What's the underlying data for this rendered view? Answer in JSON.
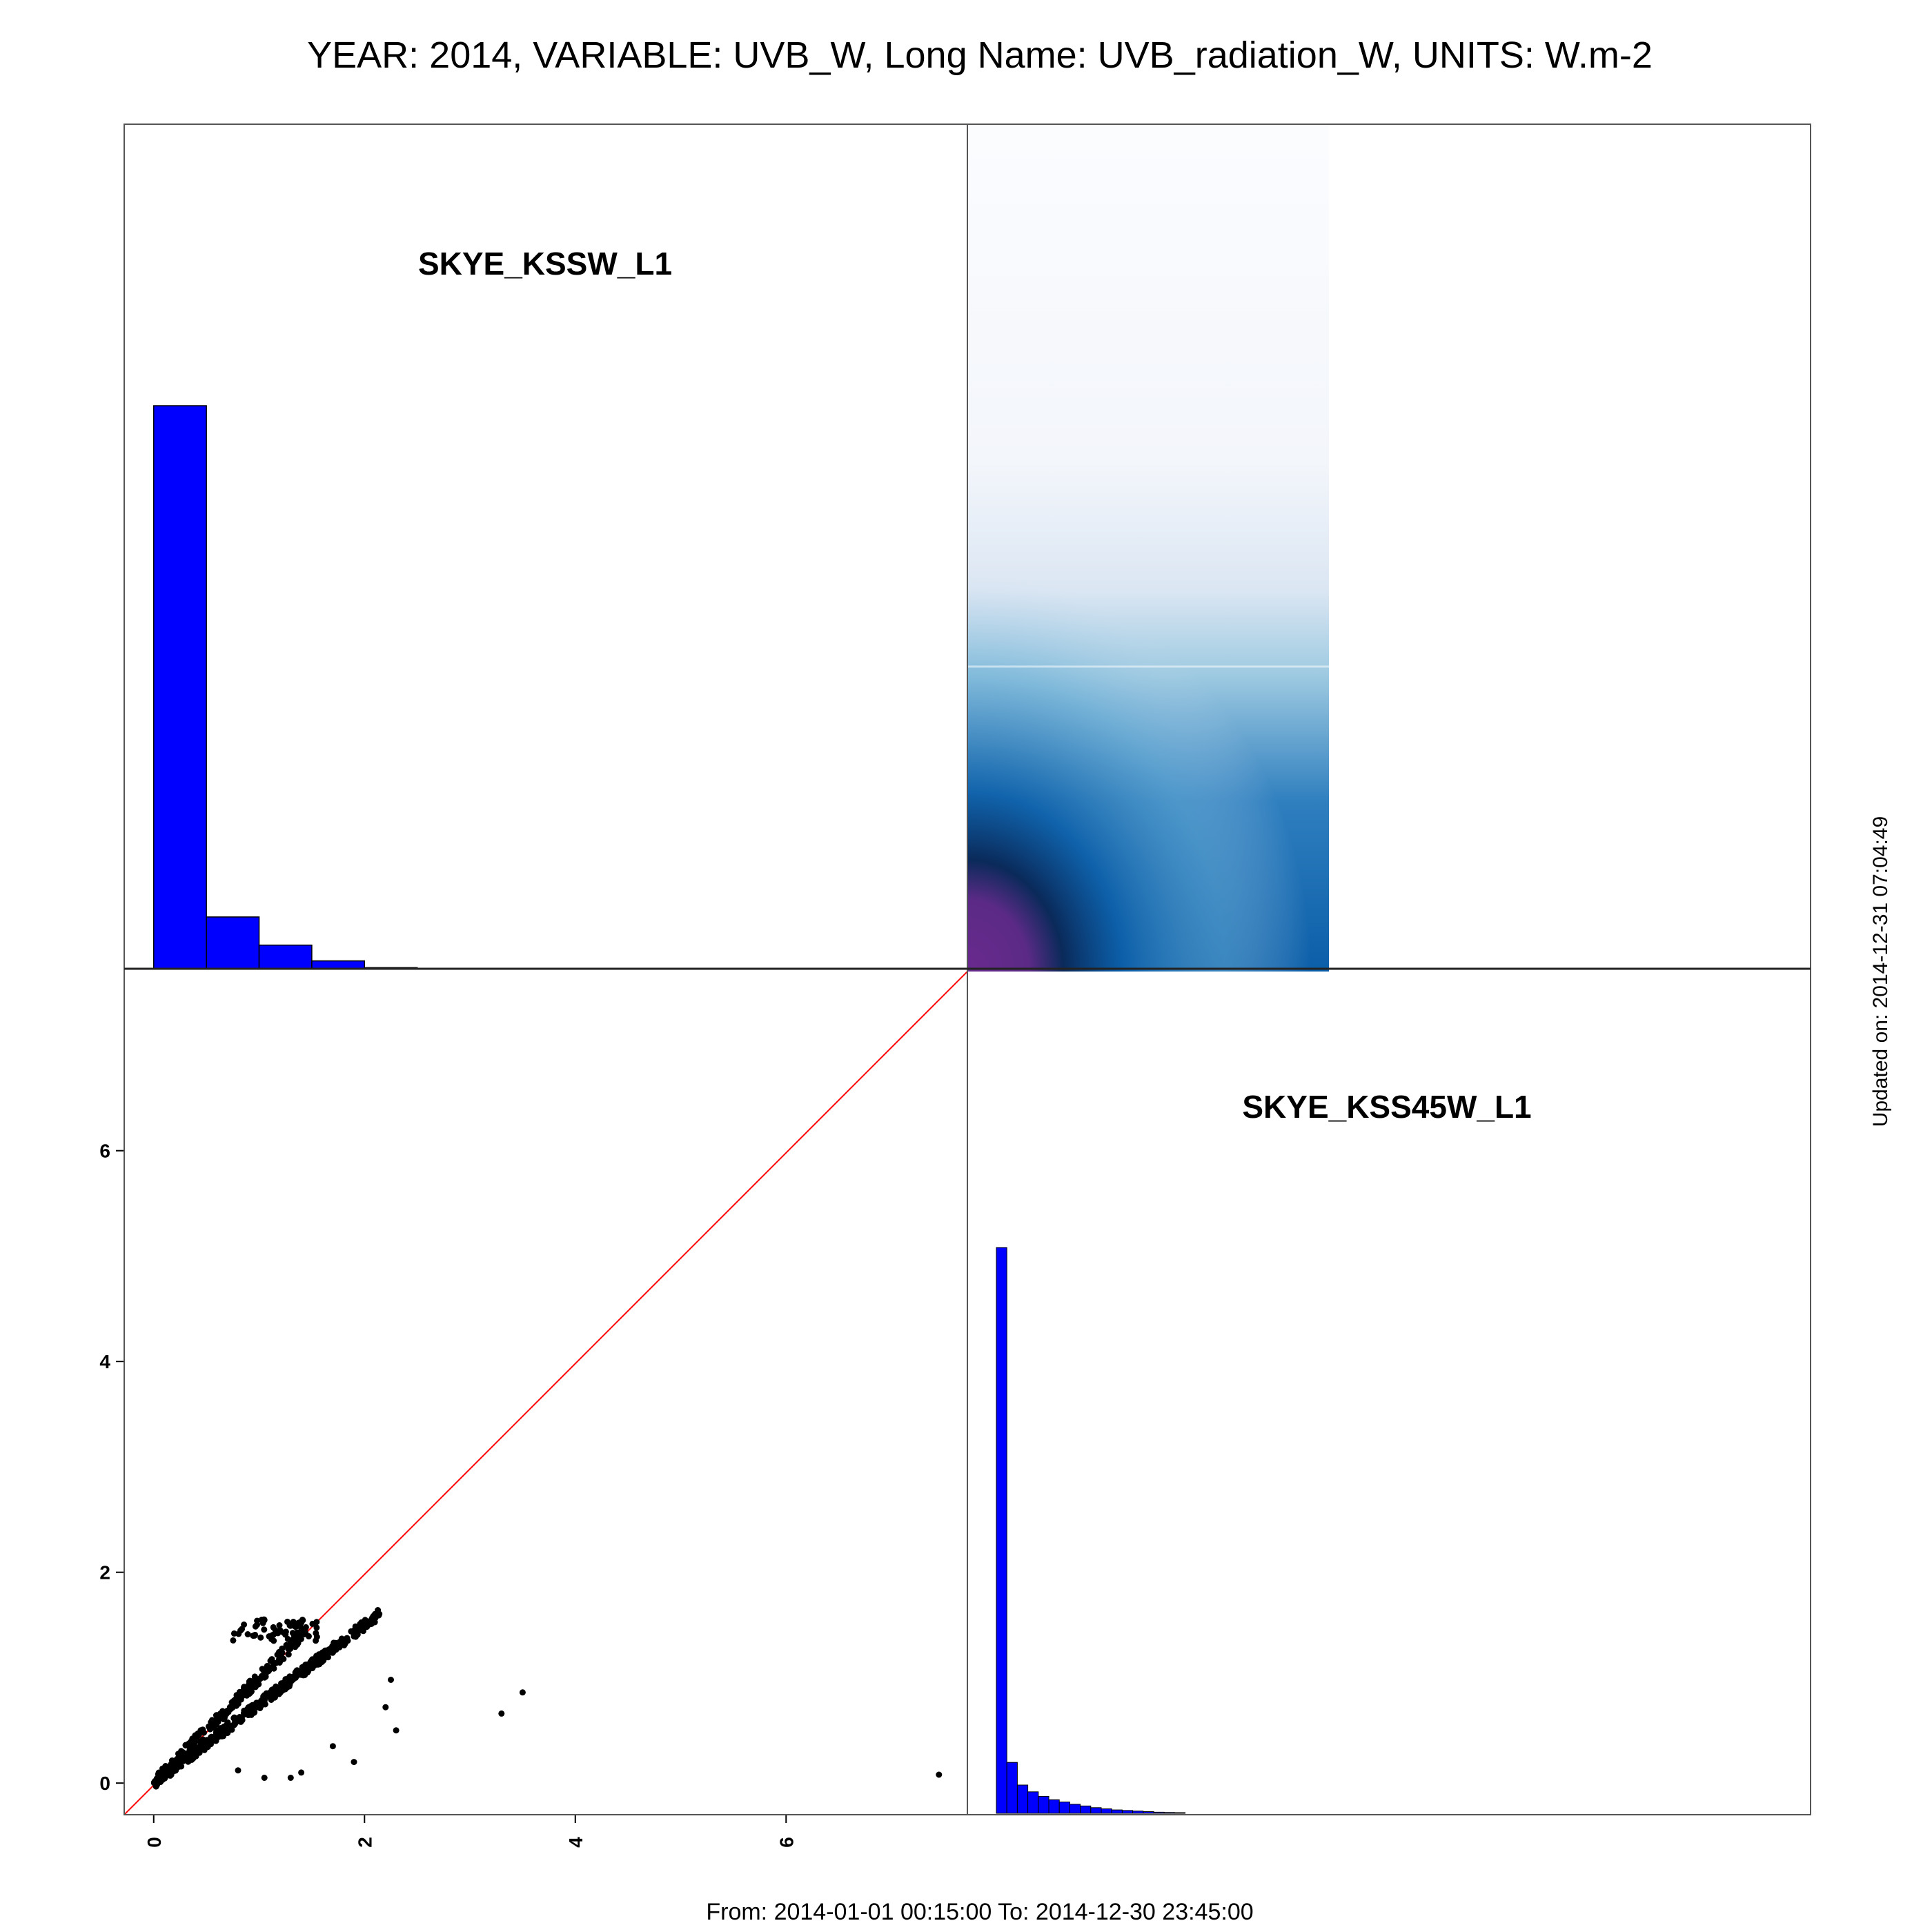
{
  "title": "YEAR: 2014, VARIABLE: UVB_W, Long Name: UVB_radiation_W, UNITS: W.m-2",
  "footer": "From: 2014-01-01 00:15:00 To: 2014-12-30 23:45:00",
  "updated": "Updated on: 2014-12-31 07:04:49",
  "colors": {
    "hist_fill": "#0000ff",
    "diagonal_line": "#ff0000",
    "points": "#000000",
    "frame": "#555555"
  },
  "chart_data": [
    {
      "type": "bar",
      "panel": "top-left",
      "label": "SKYE_KSSW_L1",
      "bin_edges": [
        0,
        0.5,
        1.0,
        1.5,
        2.0,
        2.5
      ],
      "values": [
        1.0,
        0.092,
        0.042,
        0.014,
        0.002
      ],
      "xlim": [
        -0.28,
        7.72
      ]
    },
    {
      "type": "heatmap",
      "panel": "top-right",
      "description_colors": [
        "#6a2a8e",
        "#0a2a5a",
        "#0b5ea8",
        "#6aaed6",
        "#c6dbef",
        "#f7fbff"
      ]
    },
    {
      "type": "scatter",
      "panel": "bottom-left",
      "x_ticks": [
        "0",
        "2",
        "4",
        "6"
      ],
      "y_ticks": [
        "0",
        "2",
        "4",
        "6"
      ],
      "xlim": [
        -0.28,
        7.72
      ],
      "ylim": [
        -0.3,
        7.7
      ],
      "reference_line": "y = x",
      "outliers": [
        [
          7.45,
          0.08
        ],
        [
          3.5,
          0.86
        ],
        [
          3.3,
          0.66
        ],
        [
          2.3,
          0.5
        ],
        [
          2.25,
          0.98
        ],
        [
          2.2,
          0.72
        ],
        [
          1.05,
          0.05
        ],
        [
          1.4,
          0.1
        ],
        [
          1.9,
          0.2
        ],
        [
          1.7,
          0.35
        ],
        [
          0.8,
          0.12
        ],
        [
          1.3,
          0.05
        ]
      ]
    },
    {
      "type": "bar",
      "panel": "bottom-right",
      "label": "SKYE_KSS45W_L1",
      "values": [
        1.0,
        0.09,
        0.05,
        0.038,
        0.03,
        0.024,
        0.02,
        0.016,
        0.013,
        0.01,
        0.008,
        0.006,
        0.005,
        0.004,
        0.003,
        0.002,
        0.0015,
        0.001
      ]
    }
  ]
}
